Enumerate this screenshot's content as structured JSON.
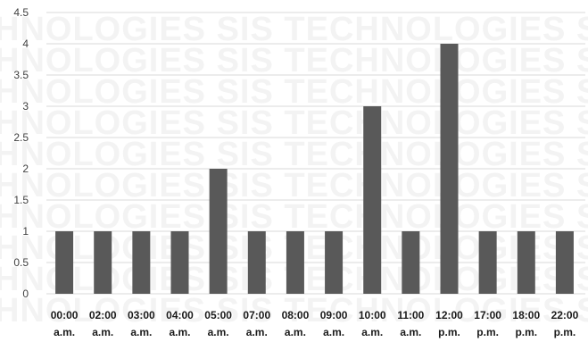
{
  "watermark": "HNOLOGIES SIS TECHNOLOGIES SIS TECHNOLOGIES SIS TECHNOLOGIES",
  "colors": {
    "bar": "#595959",
    "grid": "#d9d9d9",
    "watermark": "#f3f3f3"
  },
  "chart_data": {
    "type": "bar",
    "title": "",
    "xlabel": "",
    "ylabel": "",
    "categories": [
      "00:00 a.m.",
      "02:00 a.m.",
      "03:00 a.m.",
      "04:00 a.m.",
      "05:00 a.m.",
      "07:00 a.m.",
      "08:00 a.m.",
      "09:00 a.m.",
      "10:00 a.m.",
      "11:00 a.m.",
      "12:00 p.m.",
      "17:00 p.m.",
      "18:00 p.m.",
      "22:00 p.m."
    ],
    "values": [
      1,
      1,
      1,
      1,
      2,
      1,
      1,
      1,
      3,
      1,
      4,
      1,
      1,
      1
    ],
    "ylim": [
      0,
      4.5
    ],
    "yticks": [
      "0",
      "0.5",
      "1",
      "1.5",
      "2",
      "2.5",
      "3",
      "3.5",
      "4",
      "4.5"
    ],
    "grid": true,
    "legend": "none"
  }
}
